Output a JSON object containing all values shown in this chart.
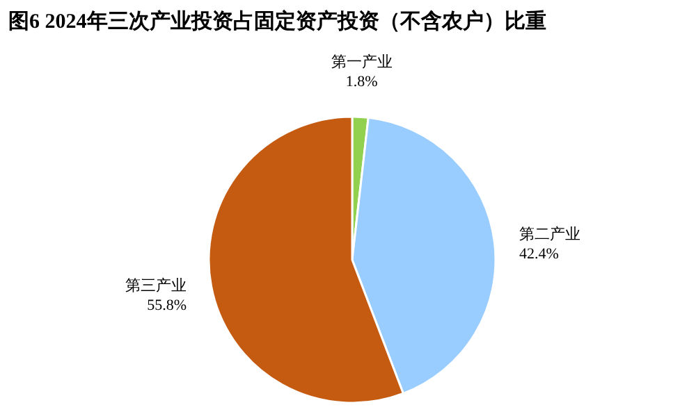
{
  "chart_data": {
    "type": "pie",
    "title": "图6 2024年三次产业投资占固定资产投资（不含农户）比重",
    "categories": [
      "第一产业",
      "第二产业",
      "第三产业"
    ],
    "values": [
      1.8,
      42.4,
      55.8
    ],
    "value_labels": [
      "1.8%",
      "42.4%",
      "55.8%"
    ],
    "colors": [
      "#92d050",
      "#99ccff",
      "#c55a11"
    ]
  }
}
